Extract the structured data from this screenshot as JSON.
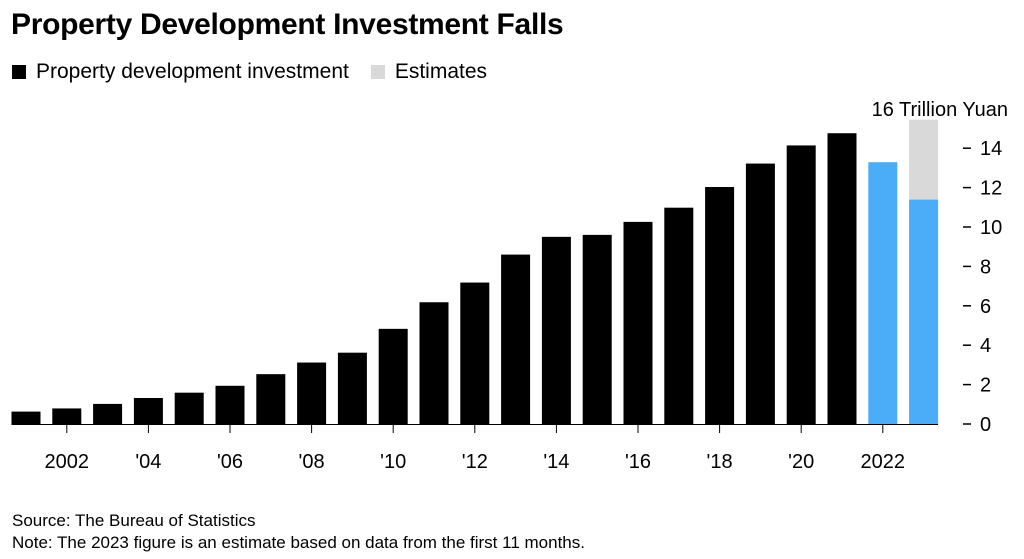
{
  "header": {
    "title": "Property Development Investment Falls"
  },
  "legend": [
    {
      "label": "Property development investment",
      "color": "#000000"
    },
    {
      "label": "Estimates",
      "color": "#d9d9d9"
    }
  ],
  "footer": {
    "source": "Source: The Bureau of Statistics",
    "note": "Note: The 2023 figure is an estimate based on data from the first 11 months."
  },
  "chart_data": {
    "type": "bar",
    "title": "Property Development Investment Falls",
    "xlabel": "",
    "ylabel": "Trillion Yuan",
    "y_unit_label": "16 Trillion Yuan",
    "ylim": [
      0,
      16
    ],
    "y_ticks": [
      0,
      2,
      4,
      6,
      8,
      10,
      12,
      14
    ],
    "y_axis_position": "right",
    "grid": false,
    "legend_position": "top-left",
    "categories": [
      "2001",
      "2002",
      "2003",
      "2004",
      "2005",
      "2006",
      "2007",
      "2008",
      "2009",
      "2010",
      "2011",
      "2012",
      "2013",
      "2014",
      "2015",
      "2016",
      "2017",
      "2018",
      "2019",
      "2020",
      "2021",
      "2022",
      "2023"
    ],
    "x_tick_labels": [
      {
        "category": "2002",
        "label": "2002"
      },
      {
        "category": "2004",
        "label": "'04"
      },
      {
        "category": "2006",
        "label": "'06"
      },
      {
        "category": "2008",
        "label": "'08"
      },
      {
        "category": "2010",
        "label": "'10"
      },
      {
        "category": "2012",
        "label": "'12"
      },
      {
        "category": "2014",
        "label": "'14"
      },
      {
        "category": "2016",
        "label": "'16"
      },
      {
        "category": "2018",
        "label": "'18"
      },
      {
        "category": "2020",
        "label": "'20"
      },
      {
        "category": "2022",
        "label": "2022"
      }
    ],
    "series": [
      {
        "name": "Property development investment",
        "values": [
          0.63,
          0.79,
          1.02,
          1.32,
          1.59,
          1.94,
          2.53,
          3.12,
          3.62,
          4.83,
          6.18,
          7.18,
          8.6,
          9.5,
          9.6,
          10.26,
          10.98,
          12.03,
          13.22,
          14.14,
          14.76,
          13.29,
          11.39
        ],
        "color": "#000000",
        "highlight_categories": [
          "2022",
          "2023"
        ],
        "highlight_color": "#4badf7"
      },
      {
        "name": "Estimates",
        "values": [
          null,
          null,
          null,
          null,
          null,
          null,
          null,
          null,
          null,
          null,
          null,
          null,
          null,
          null,
          null,
          null,
          null,
          null,
          null,
          null,
          null,
          null,
          15.45
        ],
        "color": "#d9d9d9",
        "note": "total estimated height for 2023 (stacked behind actual)"
      }
    ]
  }
}
